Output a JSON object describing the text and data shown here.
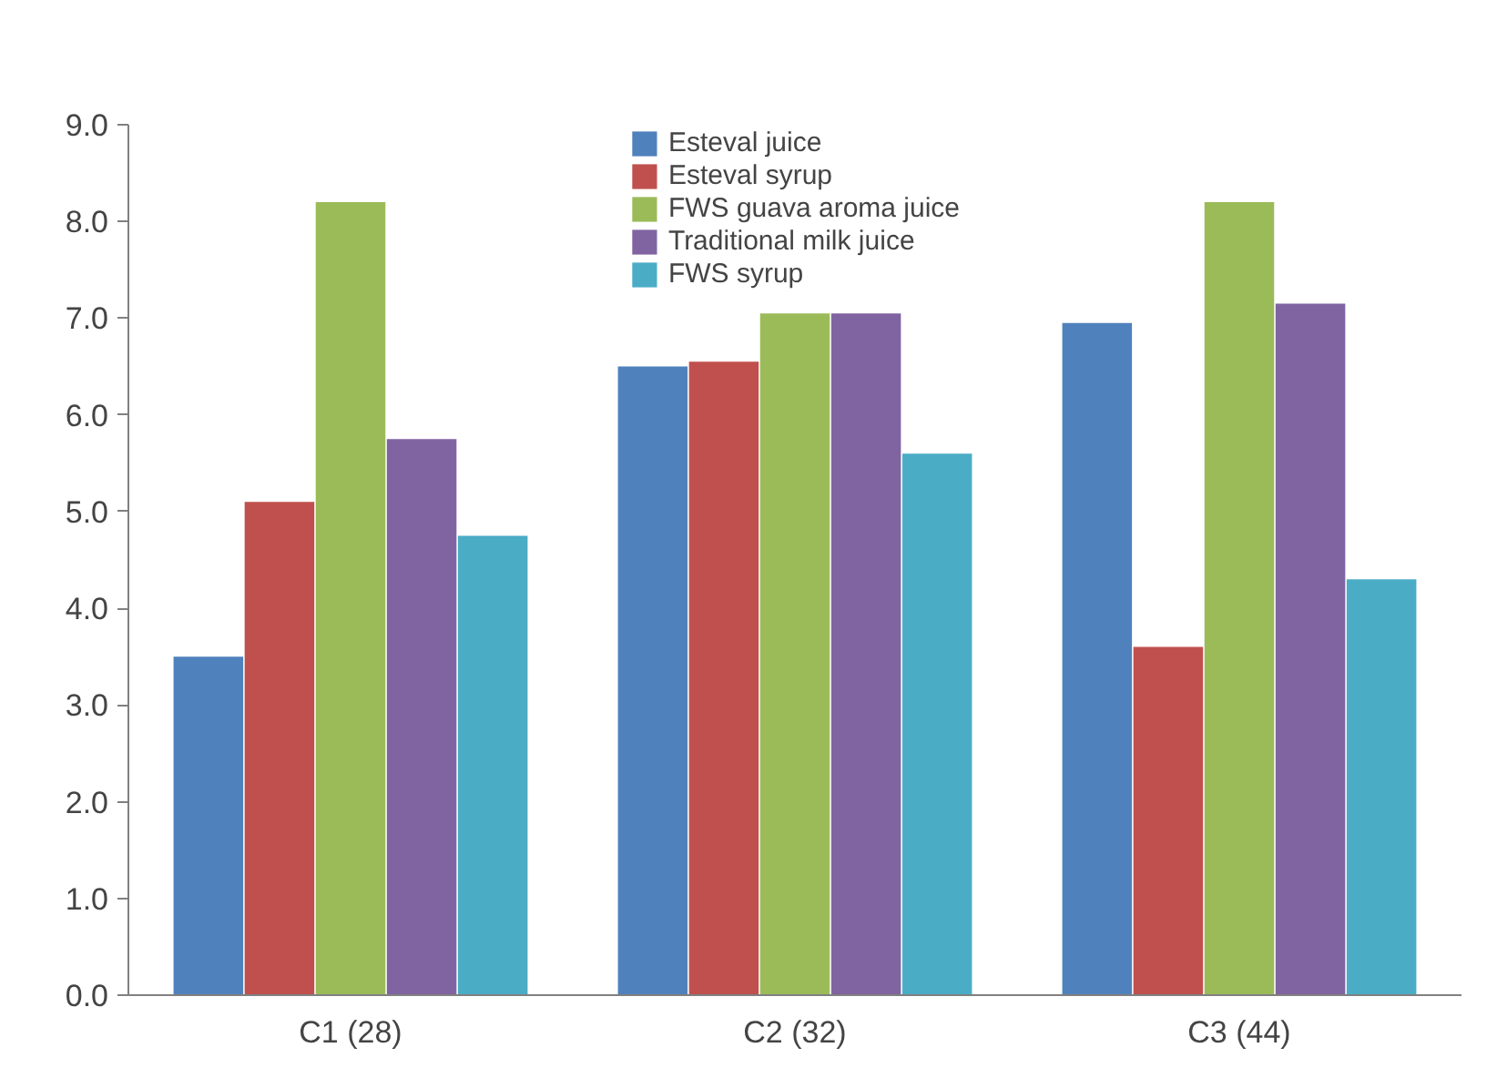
{
  "chart_data": {
    "type": "bar",
    "categories": [
      "C1 (28)",
      "C2 (32)",
      "C3 (44)"
    ],
    "series": [
      {
        "name": "Esteval juice",
        "color": "#4f81bd",
        "values": [
          3.5,
          6.5,
          6.95
        ]
      },
      {
        "name": "Esteval syrup",
        "color": "#c0504d",
        "values": [
          5.1,
          6.55,
          3.6
        ]
      },
      {
        "name": "FWS guava aroma juice",
        "color": "#9bbb59",
        "values": [
          8.2,
          7.05,
          8.2
        ]
      },
      {
        "name": "Traditional milk juice",
        "color": "#8064a2",
        "values": [
          5.75,
          7.05,
          7.15
        ]
      },
      {
        "name": "FWS syrup",
        "color": "#4bacc6",
        "values": [
          4.75,
          5.6,
          4.3
        ]
      }
    ],
    "ylim": [
      0,
      9
    ],
    "yticks": [
      {
        "value": 0,
        "label": "0.0"
      },
      {
        "value": 1,
        "label": "1.0"
      },
      {
        "value": 2,
        "label": "2.0"
      },
      {
        "value": 3,
        "label": "3.0"
      },
      {
        "value": 4,
        "label": "4.0"
      },
      {
        "value": 5,
        "label": "5.0"
      },
      {
        "value": 6,
        "label": "6.0"
      },
      {
        "value": 7,
        "label": "7.0"
      },
      {
        "value": 8,
        "label": "8.0"
      },
      {
        "value": 9,
        "label": "9.0"
      }
    ],
    "legend": "top",
    "grid": false
  }
}
